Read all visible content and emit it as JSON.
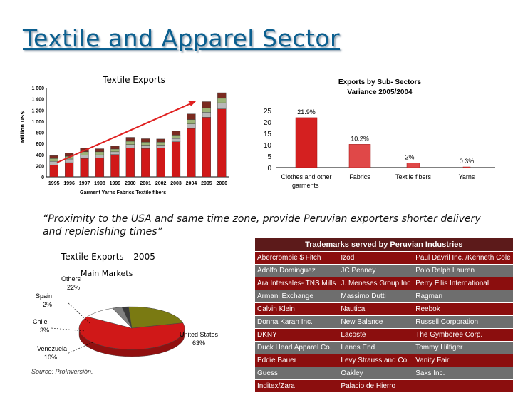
{
  "slide": {
    "title": "Textile and Apparel Sector"
  },
  "quote": "“Proximity to the USA and same time zone, provide Peruvian exporters shorter delivery and replenishing times”",
  "source": "Source: ProInversión.",
  "colors": {
    "title": "#0b5f8f",
    "bar_dark_red": "#9c1c1c",
    "bar_red": "#d01818",
    "pie_red": "#d01818",
    "pie_olive": "#7a7a12"
  },
  "chart_data": [
    {
      "type": "bar",
      "stacked": true,
      "title": "Textile Exports",
      "ylabel": "Million US$",
      "ylim": [
        0,
        1600
      ],
      "yticks": [
        "0",
        "200",
        "400",
        "600",
        "800",
        "1 000",
        "1 200",
        "1 400",
        "1 600"
      ],
      "categories": [
        "1995",
        "1996",
        "1997",
        "1998",
        "1999",
        "2000",
        "2001",
        "2002",
        "2003",
        "2004",
        "2005",
        "2006"
      ],
      "legend_label": "Garment Yarns Fabrics Textile fibers",
      "series": [
        {
          "values": [
            210,
            255,
            330,
            340,
            400,
            520,
            510,
            520,
            630,
            870,
            1070,
            1220
          ]
        },
        {
          "values": [
            70,
            65,
            60,
            55,
            50,
            60,
            60,
            50,
            60,
            80,
            90,
            110
          ]
        },
        {
          "values": [
            50,
            50,
            60,
            55,
            50,
            60,
            55,
            55,
            60,
            80,
            80,
            80
          ]
        },
        {
          "values": [
            50,
            60,
            65,
            55,
            50,
            70,
            60,
            55,
            70,
            100,
            110,
            100
          ]
        }
      ]
    },
    {
      "type": "bar",
      "title": "Exports by Sub- Sectors\nVariance 2005/2004",
      "ylim": [
        0,
        25
      ],
      "yticks": [
        "0",
        "5",
        "10",
        "15",
        "20",
        "25"
      ],
      "categories": [
        "Clothes and other garments",
        "Fabrics",
        "Textile fibers",
        "Yarns"
      ],
      "values": [
        21.9,
        10.2,
        2,
        0.3
      ],
      "data_labels": [
        "21.9%",
        "10.2%",
        "2%",
        "0.3%"
      ]
    },
    {
      "type": "pie",
      "title": "Textile Exports – 2005",
      "subtitle": "Main Markets",
      "slices": [
        {
          "label": "United States",
          "pct_label": "63%",
          "value": 63,
          "color": "#d01818"
        },
        {
          "label": "Venezuela",
          "pct_label": "10%",
          "value": 10,
          "color": "#ffffff"
        },
        {
          "label": "Chile",
          "pct_label": "3%",
          "value": 3,
          "color": "#7f7f7f"
        },
        {
          "label": "Spain",
          "pct_label": "2%",
          "value": 2,
          "color": "#3a3a3a"
        },
        {
          "label": "Others",
          "pct_label": "22%",
          "value": 22,
          "color": "#7a7a12"
        }
      ]
    }
  ],
  "trademarks": {
    "title": "Trademarks served by Peruvian Industries",
    "rows": [
      [
        "Abercrombie $ Fitch",
        "Izod",
        "Paul Davril Inc. /Kenneth Cole"
      ],
      [
        "Adolfo Dominguez",
        "JC Penney",
        "Polo Ralph Lauren"
      ],
      [
        "Ara Intersales- TNS Mills",
        "J. Meneses Group Inc",
        "Perry Ellis International"
      ],
      [
        "Armani Exchange",
        "Massimo Dutti",
        "Ragman"
      ],
      [
        "Calvin Klein",
        "Nautica",
        "Reebok"
      ],
      [
        "Donna Karan Inc.",
        "New Balance",
        "Russell Corporation"
      ],
      [
        "DKNY",
        "Lacoste",
        "The Gymboree Corp."
      ],
      [
        "Duck Head Apparel Co.",
        "Lands End",
        "Tommy Hilfiger"
      ],
      [
        "Eddie Bauer",
        "Levy Strauss and Co.",
        "Vanity Fair"
      ],
      [
        "Guess",
        "Oakley",
        "Saks Inc."
      ],
      [
        "Inditex/Zara",
        "Palacio de Hierro",
        ""
      ]
    ]
  }
}
